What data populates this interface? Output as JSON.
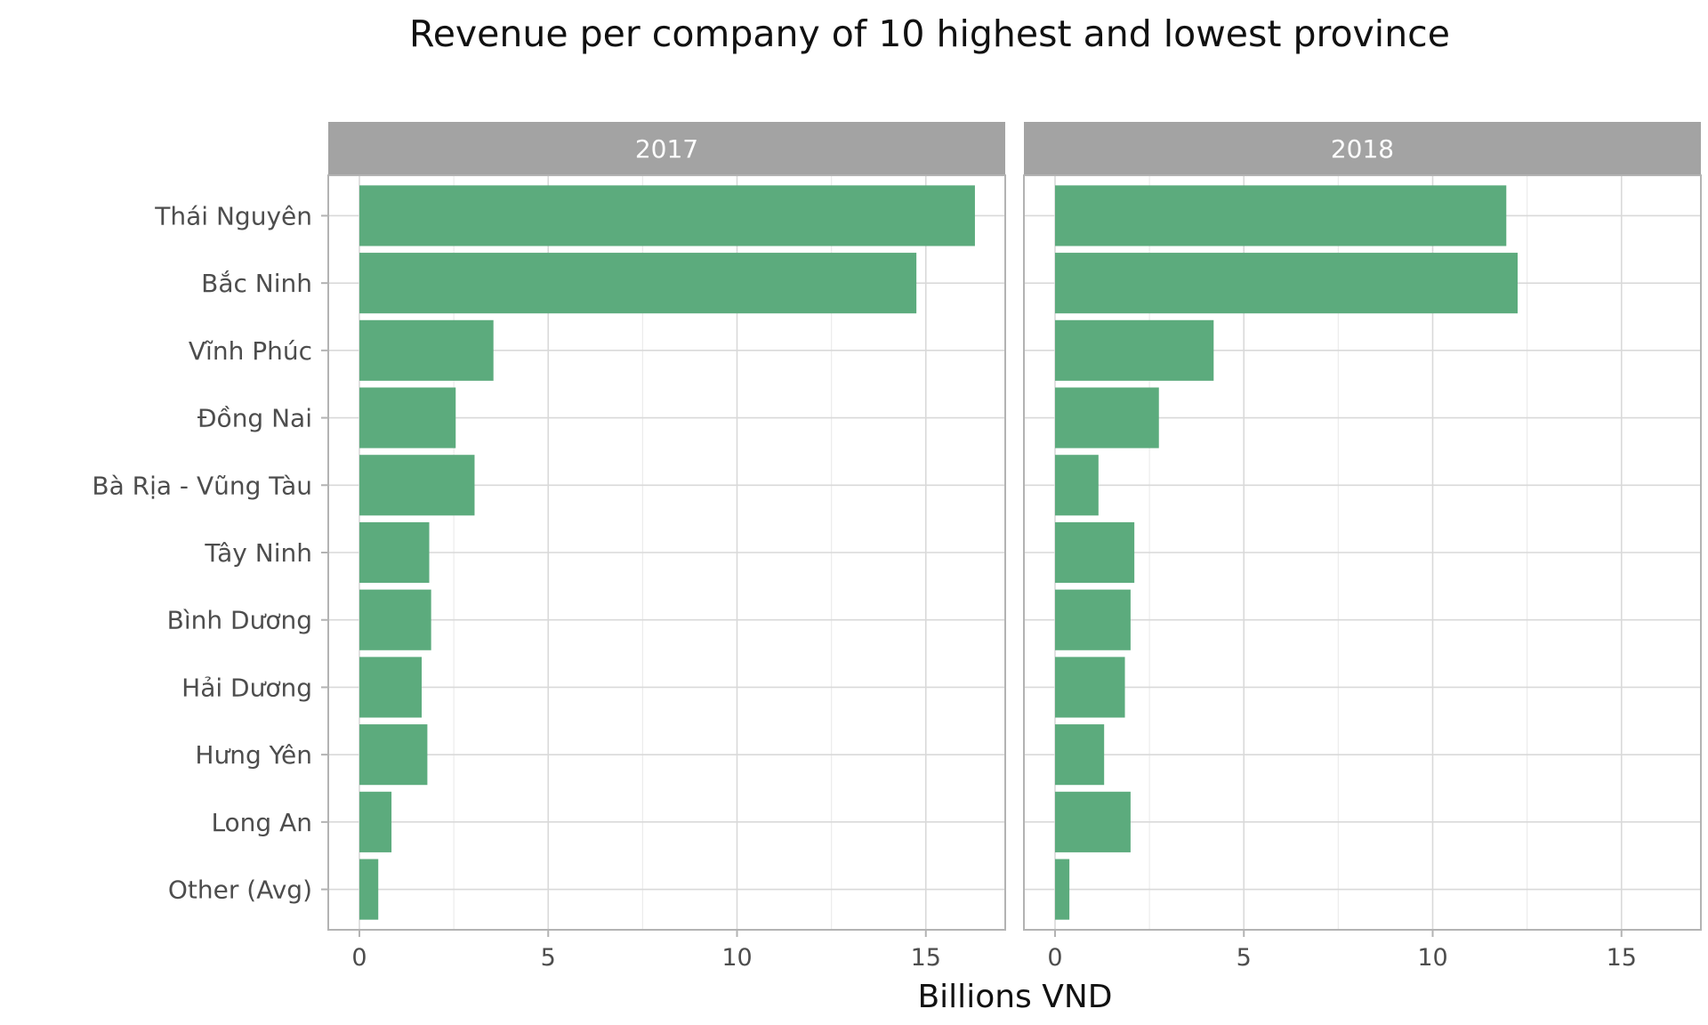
{
  "chart_data": {
    "type": "bar",
    "orientation": "horizontal",
    "title": "Revenue per company of 10 highest and lowest province",
    "xlabel": "Billions VND",
    "ylabel": "",
    "xlim": [
      0,
      16.8
    ],
    "x_ticks": [
      0,
      5,
      10,
      15
    ],
    "grid": true,
    "bar_color": "#5cab7d",
    "strip_color": "#a3a3a3",
    "categories": [
      "Thái Nguyên",
      "Bắc Ninh",
      "Vĩnh Phúc",
      "Đồng Nai",
      "Bà Rịa - Vũng Tàu",
      "Tây Ninh",
      "Bình Dương",
      "Hải Dương",
      "Hưng Yên",
      "Long An",
      "Other (Avg)"
    ],
    "panels": [
      {
        "label": "2017",
        "values": [
          16.3,
          14.75,
          3.55,
          2.55,
          3.05,
          1.85,
          1.9,
          1.65,
          1.8,
          0.85,
          0.5
        ]
      },
      {
        "label": "2018",
        "values": [
          11.95,
          12.25,
          4.2,
          2.75,
          1.15,
          2.1,
          2.0,
          1.85,
          1.3,
          2.0,
          0.38
        ]
      }
    ]
  }
}
